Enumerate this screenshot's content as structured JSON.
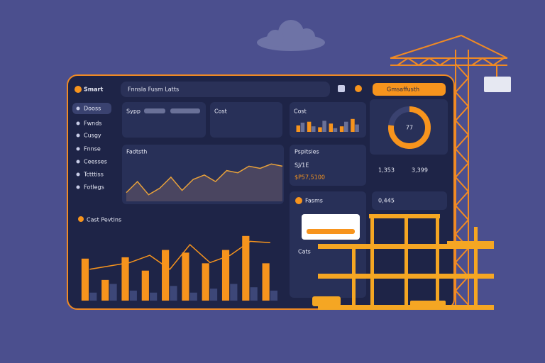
{
  "header": {
    "brand": "Smart",
    "search": "Fnnsla Fusm Latts",
    "badge": "Gmsaffusth"
  },
  "sidebar": [
    "Dooss",
    "Fwnds",
    "Cusgy",
    "Fnnse",
    "Ceesses",
    "Tctttiss",
    "Fotlegs"
  ],
  "cards": {
    "sypp": "Sypp",
    "cost": "Cost",
    "pspitsies": "Pspitsies",
    "code": "SJ/1E",
    "amount": "$P57,5100",
    "first_total": "1,353",
    "second_total": "3,399",
    "fasms": "Fasms",
    "small_total": "0,445",
    "cats": "Cats"
  },
  "chart_data": [
    {
      "type": "bar",
      "title": "Cast Pevtins",
      "ylim": [
        0,
        100
      ],
      "series": [
        {
          "kind": "bar",
          "color": "#f7941d",
          "values": [
            63,
            31,
            65,
            45,
            76,
            72,
            56,
            76,
            97,
            56
          ]
        },
        {
          "kind": "bar",
          "color": "#3d4778",
          "values": [
            12,
            25,
            15,
            12,
            22,
            12,
            18,
            25,
            20,
            15
          ]
        },
        {
          "kind": "line",
          "color": "#f7941d",
          "values": [
            47,
            52,
            57,
            68,
            47,
            84,
            57,
            68,
            89,
            87
          ]
        }
      ]
    },
    {
      "type": "pie",
      "values": [
        77,
        23
      ],
      "colors": [
        "#f7941d",
        "#3a4270"
      ]
    },
    {
      "type": "area",
      "title": "Fadtsth",
      "ylim": [
        0,
        100
      ],
      "color": "#e8a13a",
      "values": [
        20,
        45,
        15,
        30,
        55,
        25,
        50,
        60,
        45,
        70,
        65,
        80,
        75,
        85,
        80
      ]
    },
    {
      "type": "bar",
      "title": "Cost",
      "ylim": [
        0,
        100
      ],
      "series": [
        {
          "kind": "bar",
          "color": "#f7941d",
          "values": [
            35,
            55,
            25,
            45,
            30,
            70
          ]
        },
        {
          "kind": "bar",
          "color": "#6a7198",
          "values": [
            50,
            30,
            60,
            20,
            55,
            40
          ]
        }
      ]
    }
  ]
}
